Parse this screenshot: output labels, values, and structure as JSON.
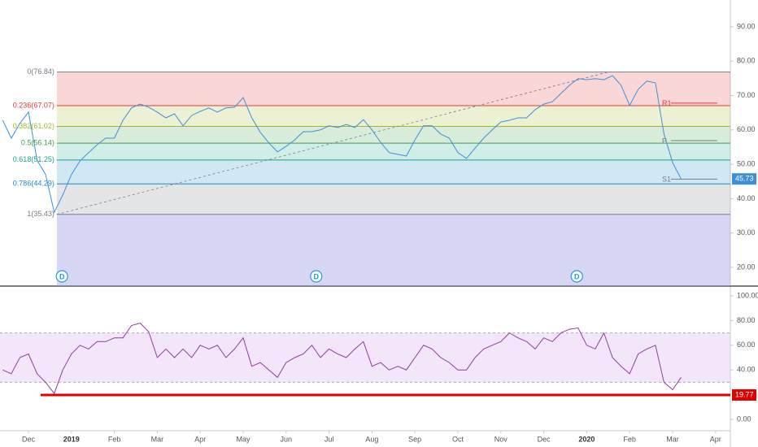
{
  "chart_data": [
    {
      "type": "line",
      "xlim": [
        -0.663,
        16.345
      ],
      "ylim": [
        14.56,
        97.8
      ],
      "yticks": [
        {
          "value": 20,
          "label": "20.00"
        },
        {
          "value": 30,
          "label": "30.00"
        },
        {
          "value": 40,
          "label": "40.00"
        },
        {
          "value": 50,
          "label": "50.00"
        },
        {
          "value": 60,
          "label": "60.00"
        },
        {
          "value": 70,
          "label": "70.00"
        },
        {
          "value": 80,
          "label": "80.00"
        },
        {
          "value": 90,
          "label": "90.00"
        }
      ],
      "x": [
        -0.6,
        -0.4,
        -0.2,
        0,
        0.2,
        0.4,
        0.6,
        0.8,
        1.0,
        1.2,
        1.4,
        1.6,
        1.8,
        2.0,
        2.2,
        2.4,
        2.6,
        2.8,
        3.0,
        3.2,
        3.4,
        3.6,
        3.8,
        4.0,
        4.2,
        4.4,
        4.6,
        4.8,
        5.0,
        5.2,
        5.4,
        5.6,
        5.8,
        6.0,
        6.2,
        6.4,
        6.6,
        6.8,
        7.0,
        7.2,
        7.4,
        7.6,
        7.8,
        8.0,
        8.2,
        8.4,
        8.6,
        8.8,
        9.0,
        9.2,
        9.4,
        9.6,
        9.8,
        10.0,
        10.2,
        10.4,
        10.6,
        10.8,
        11.0,
        11.2,
        11.4,
        11.6,
        11.8,
        12.0,
        12.2,
        12.4,
        12.6,
        12.8,
        13.0,
        13.2,
        13.4,
        13.6,
        13.8,
        14.0,
        14.2,
        14.4,
        14.6,
        14.8,
        15.0,
        15.2
      ],
      "series": [
        {
          "color": "#3d8fdc",
          "values": [
            62.8,
            57.6,
            61.9,
            65.2,
            51.2,
            47.0,
            36.0,
            41.1,
            47.0,
            51.0,
            53.4,
            55.7,
            57.6,
            57.6,
            62.8,
            66.4,
            67.5,
            66.6,
            65.2,
            63.5,
            64.7,
            61.2,
            64.2,
            65.4,
            66.4,
            65.2,
            66.4,
            66.6,
            69.4,
            63.5,
            59.3,
            56.2,
            53.6,
            55.2,
            57.1,
            59.5,
            59.5,
            60.0,
            61.2,
            60.7,
            61.6,
            60.7,
            63.0,
            60.0,
            56.4,
            53.4,
            52.9,
            52.4,
            57.1,
            61.2,
            61.2,
            58.8,
            57.6,
            53.4,
            51.7,
            54.7,
            57.6,
            60.0,
            62.3,
            62.8,
            63.5,
            63.5,
            65.9,
            67.5,
            68.2,
            70.6,
            73.0,
            74.9,
            74.6,
            74.9,
            74.6,
            75.8,
            73.0,
            67.1,
            71.8,
            74.2,
            73.7,
            58.8,
            50.5,
            45.73
          ]
        }
      ],
      "levels": [
        {
          "label": "0(76.84)",
          "value": 76.84,
          "color": "#787b86"
        },
        {
          "label": "0.236(67.07)",
          "value": 67.07,
          "color": "#e53935"
        },
        {
          "label": "0.382(61.02)",
          "value": 61.02,
          "color": "#a5b82a"
        },
        {
          "label": "0.5(56.14)",
          "value": 56.14,
          "color": "#43a047"
        },
        {
          "label": "0.618(51.25)",
          "value": 51.25,
          "color": "#1aa38a"
        },
        {
          "label": "0.786(44.29)",
          "value": 44.29,
          "color": "#1e88c8"
        },
        {
          "label": "1(35.43)",
          "value": 35.43,
          "color": "#787b86"
        }
      ],
      "below_color": "#9b9be6",
      "trendline": {
        "x": [
          0.66,
          13.5
        ],
        "y": [
          35.43,
          76.84
        ]
      },
      "pivots": [
        {
          "label": "R1",
          "value": 67.8,
          "color": "#e53935"
        },
        {
          "label": "P",
          "value": 56.9,
          "color": "#787b86"
        },
        {
          "label": "S1",
          "value": 45.7,
          "color": "#787b86"
        }
      ],
      "dividends": [
        {
          "label": "D",
          "x": 0.78
        },
        {
          "label": "D",
          "x": 6.7
        },
        {
          "label": "D",
          "x": 12.77
        }
      ]
    },
    {
      "type": "line",
      "xlim": [
        -0.663,
        16.345
      ],
      "ylim": [
        -9.2,
        107.9
      ],
      "yticks": [
        {
          "value": 0,
          "label": "0.00"
        },
        {
          "value": 40,
          "label": "40.00"
        },
        {
          "value": 60,
          "label": "60.00"
        },
        {
          "value": 80,
          "label": "80.00"
        },
        {
          "value": 100,
          "label": "100.00"
        }
      ],
      "xticks": [
        {
          "value": 0,
          "label": "Dec"
        },
        {
          "value": 1,
          "label": "2019"
        },
        {
          "value": 2,
          "label": "Feb"
        },
        {
          "value": 3,
          "label": "Mar"
        },
        {
          "value": 4,
          "label": "Apr"
        },
        {
          "value": 5,
          "label": "May"
        },
        {
          "value": 6,
          "label": "Jun"
        },
        {
          "value": 7,
          "label": "Jul"
        },
        {
          "value": 8,
          "label": "Aug"
        },
        {
          "value": 9,
          "label": "Sep"
        },
        {
          "value": 10,
          "label": "Oct"
        },
        {
          "value": 11,
          "label": "Nov"
        },
        {
          "value": 12,
          "label": "Dec"
        },
        {
          "value": 13,
          "label": "2020"
        },
        {
          "value": 14,
          "label": "Feb"
        },
        {
          "value": 15,
          "label": "Mar"
        },
        {
          "value": 16,
          "label": "Apr"
        }
      ],
      "x": [
        -0.6,
        -0.4,
        -0.2,
        0,
        0.2,
        0.4,
        0.6,
        0.8,
        1.0,
        1.2,
        1.4,
        1.6,
        1.8,
        2.0,
        2.2,
        2.4,
        2.6,
        2.8,
        3.0,
        3.2,
        3.4,
        3.6,
        3.8,
        4.0,
        4.2,
        4.4,
        4.6,
        4.8,
        5.0,
        5.2,
        5.4,
        5.6,
        5.8,
        6.0,
        6.2,
        6.4,
        6.6,
        6.8,
        7.0,
        7.2,
        7.4,
        7.6,
        7.8,
        8.0,
        8.2,
        8.4,
        8.6,
        8.8,
        9.0,
        9.2,
        9.4,
        9.6,
        9.8,
        10.0,
        10.2,
        10.4,
        10.6,
        10.8,
        11.0,
        11.2,
        11.4,
        11.6,
        11.8,
        12.0,
        12.2,
        12.4,
        12.6,
        12.8,
        13.0,
        13.2,
        13.4,
        13.6,
        13.8,
        14.0,
        14.2,
        14.4,
        14.6,
        14.8,
        15.0,
        15.2
      ],
      "series": [
        {
          "color": "#8e3d9e",
          "values": [
            40,
            37,
            50,
            53,
            37,
            30,
            21,
            40,
            53,
            60,
            57,
            63,
            63,
            66,
            66,
            76,
            78,
            71,
            50,
            57,
            50,
            57,
            50,
            60,
            57,
            60,
            50,
            57,
            66,
            43,
            46,
            40,
            34,
            46,
            50,
            53,
            60,
            50,
            57,
            53,
            50,
            57,
            63,
            43,
            46,
            40,
            43,
            40,
            50,
            60,
            57,
            50,
            46,
            40,
            40,
            50,
            57,
            60,
            63,
            70,
            66,
            63,
            57,
            66,
            63,
            70,
            73,
            74,
            60,
            57,
            70,
            50,
            43,
            37,
            53,
            57,
            60,
            30,
            24,
            34
          ]
        }
      ],
      "band": [
        30,
        70
      ],
      "band_color": "#e6c8f5",
      "hline": {
        "value": 19.77,
        "color": "#e00000"
      }
    }
  ]
}
